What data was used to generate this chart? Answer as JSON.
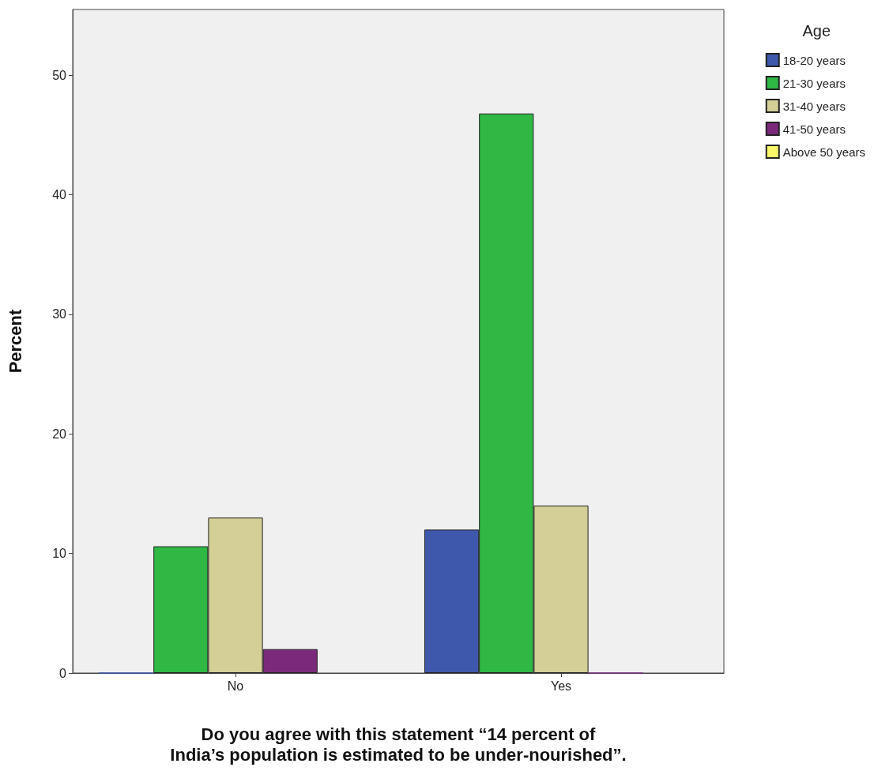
{
  "chart_data": {
    "type": "bar",
    "xlabel": "Do you agree with this statement “14 percent of India’s population is estimated to be under-nourished”.",
    "ylabel": "Percent",
    "legend_title": "Age",
    "categories": [
      "No",
      "Yes"
    ],
    "series": [
      {
        "name": "18-20 years",
        "color": "#3e58ac",
        "values": [
          0,
          12.0
        ]
      },
      {
        "name": "21-30 years",
        "color": "#2fb844",
        "values": [
          10.6,
          46.8
        ]
      },
      {
        "name": "31-40 years",
        "color": "#d4cf96",
        "values": [
          13.0,
          14.0
        ]
      },
      {
        "name": "41-50 years",
        "color": "#7b2a7b",
        "values": [
          2.0,
          0
        ]
      },
      {
        "name": "Above 50 years",
        "color": "#fbf96a",
        "values": [
          null,
          null
        ]
      }
    ],
    "ylim": [
      0,
      55.5
    ],
    "yticks": [
      0,
      10,
      20,
      30,
      40,
      50
    ],
    "grid": false,
    "legend": "top right"
  }
}
